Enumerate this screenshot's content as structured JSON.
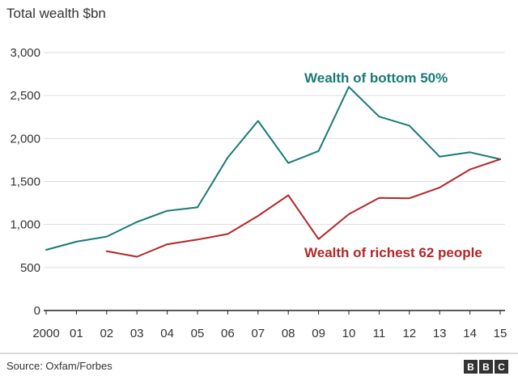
{
  "chart_data": {
    "type": "line",
    "title": "Total wealth $bn",
    "categories": [
      "2000",
      "01",
      "02",
      "03",
      "04",
      "05",
      "06",
      "07",
      "08",
      "09",
      "10",
      "11",
      "12",
      "13",
      "14",
      "15"
    ],
    "ylim": [
      0,
      3000
    ],
    "yticks": [
      0,
      500,
      1000,
      1500,
      2000,
      2500,
      3000
    ],
    "ytick_labels": [
      "0",
      "500",
      "1,000",
      "1,500",
      "2,000",
      "2,500",
      "3,000"
    ],
    "grid": true,
    "series": [
      {
        "name": "Wealth of bottom 50%",
        "color": "#1a7a74",
        "values": [
          705,
          800,
          860,
          1030,
          1160,
          1200,
          1780,
          2205,
          1715,
          1855,
          2600,
          2255,
          2150,
          1790,
          1840,
          1760
        ]
      },
      {
        "name": "Wealth of richest 62 people",
        "color": "#b52528",
        "values": [
          null,
          null,
          690,
          625,
          770,
          825,
          890,
          1100,
          1340,
          830,
          1120,
          1310,
          1305,
          1430,
          1640,
          1760
        ]
      }
    ],
    "source": "Source: Oxfam/Forbes"
  },
  "branding": {
    "logo_letters": [
      "B",
      "B",
      "C"
    ]
  }
}
